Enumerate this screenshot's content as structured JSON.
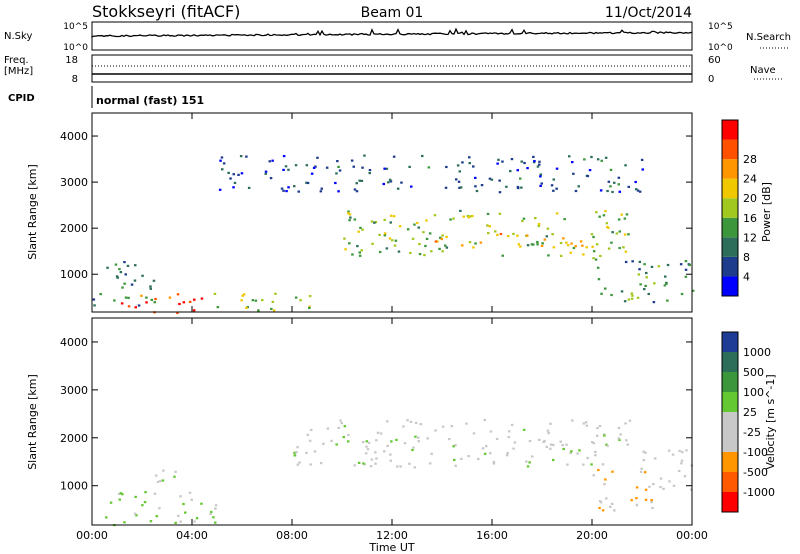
{
  "header": {
    "station": "Stokkseyri (fitACF)",
    "beam": "Beam 01",
    "date": "11/Oct/2014"
  },
  "top_panels": {
    "nsky_label": "N.Sky",
    "nsky_ticks": [
      "10^5",
      "10^0"
    ],
    "nsearch_label": "N.Search",
    "nsearch_ticks": [
      "10^5",
      "10^0"
    ],
    "freq_label": "Freq.",
    "freq_unit": "[MHz]",
    "freq_ticks": [
      "18",
      "8"
    ],
    "nave_label": "Nave",
    "nave_ticks": [
      "60",
      "0"
    ],
    "cpid_label": "CPID",
    "cpid_value": "normal (fast) 151"
  },
  "colors": {
    "power_scale": [
      "#0000ff",
      "#1e3c8c",
      "#2d6e5a",
      "#3c963c",
      "#a0c81e",
      "#f0c800",
      "#ff9600",
      "#ff5000",
      "#ff0000"
    ],
    "velocity_scale": [
      "#1e3c96",
      "#2d6e5a",
      "#3c963c",
      "#64c832",
      "#c8c8c8",
      "#c8c8c8",
      "#ff9600",
      "#ff5a00",
      "#ff0000"
    ]
  },
  "chart_data": [
    {
      "type": "heatmap",
      "name": "power",
      "ylabel": "Slant Range [km]",
      "ylim": [
        180,
        4500
      ],
      "yticks": [
        1000,
        2000,
        3000,
        4000
      ],
      "colorbar_label": "Power [dB]",
      "colorbar_ticks": [
        "4",
        "8",
        "12",
        "16",
        "20",
        "24",
        "28"
      ],
      "colorbar_range": [
        0,
        30
      ],
      "features": [
        {
          "t0": 0.0,
          "t1": 2.5,
          "r0": 300,
          "r1": 1300,
          "value": 8
        },
        {
          "t0": 1.0,
          "t1": 4.5,
          "r0": 180,
          "r1": 600,
          "value": 27
        },
        {
          "t0": 4.5,
          "t1": 9.0,
          "r0": 200,
          "r1": 600,
          "value": 14
        },
        {
          "t0": 10.0,
          "t1": 21.5,
          "r0": 1400,
          "r1": 2400,
          "value": 14
        },
        {
          "t0": 13.0,
          "t1": 20.0,
          "r0": 1600,
          "r1": 1900,
          "value": 20
        },
        {
          "t0": 20.0,
          "t1": 24.0,
          "r0": 400,
          "r1": 1400,
          "value": 10
        },
        {
          "t0": 5.0,
          "t1": 22.0,
          "r0": 2800,
          "r1": 3600,
          "value": 6
        }
      ]
    },
    {
      "type": "heatmap",
      "name": "velocity",
      "ylabel": "Slant Range [km]",
      "ylim": [
        180,
        4500
      ],
      "yticks": [
        1000,
        2000,
        3000,
        4000
      ],
      "colorbar_label": "Velocity [m s^-1]",
      "colorbar_ticks": [
        "1000",
        "500",
        "100",
        "25",
        "-25",
        "-100",
        "-500",
        "-1000"
      ],
      "colorbar_range": [
        -1000,
        1000
      ],
      "features": [
        {
          "t0": 0.5,
          "t1": 5.0,
          "r0": 200,
          "r1": 900,
          "value": 150
        },
        {
          "t0": 2.0,
          "t1": 3.5,
          "r0": 1100,
          "r1": 1500,
          "value": 0
        },
        {
          "t0": 8.0,
          "t1": 21.5,
          "r0": 1400,
          "r1": 2400,
          "value": 0
        },
        {
          "t0": 20.0,
          "t1": 22.5,
          "r0": 500,
          "r1": 1400,
          "value": -300
        },
        {
          "t0": 22.0,
          "t1": 24.0,
          "r0": 800,
          "r1": 1800,
          "value": -100
        }
      ]
    }
  ],
  "x_axis": {
    "ticks": [
      "00:00",
      "04:00",
      "08:00",
      "12:00",
      "16:00",
      "20:00",
      "00:00"
    ],
    "label": "Time UT"
  }
}
